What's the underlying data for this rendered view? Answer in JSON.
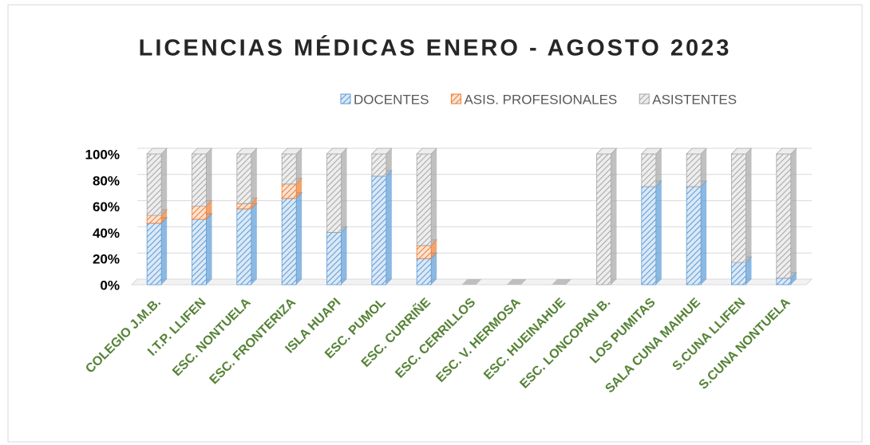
{
  "chart_data": {
    "type": "bar",
    "stacked": true,
    "title": "LICENCIAS MÉDICAS ENERO - AGOSTO 2023",
    "categories": [
      "COLEGIO J.M.B.",
      "I.T.P. LLIFEN",
      "ESC. NONTUELA",
      "ESC. FRONTERIZA",
      "ISLA HUAPI",
      "ESC. PUMOL",
      "ESC. CURRIÑE",
      "ESC. CERRILLOS",
      "ESC. V. HERMOSA",
      "ESC. HUEINAHUE",
      "ESC. LONCOPAN B.",
      "LOS PUMITAS",
      "SALA CUNA MAIHUE",
      "S.CUNA LLIFEN",
      "S.CUNA NONTUELA"
    ],
    "series": [
      {
        "name": "DOCENTES",
        "color": "#5b9bd5",
        "values": [
          47,
          50,
          58,
          66,
          40,
          83,
          20,
          0,
          0,
          0,
          0,
          75,
          75,
          17,
          5
        ]
      },
      {
        "name": "ASIS. PROFESIONALES",
        "color": "#ed7d31",
        "values": [
          6,
          10,
          4,
          11,
          0,
          0,
          10,
          0,
          0,
          0,
          0,
          0,
          0,
          0,
          0
        ]
      },
      {
        "name": "ASISTENTES",
        "color": "#a5a5a5",
        "values": [
          47,
          40,
          38,
          23,
          60,
          17,
          70,
          0,
          0,
          0,
          100,
          25,
          25,
          83,
          95
        ]
      }
    ],
    "ylim": [
      0,
      100
    ],
    "yticks": [
      {
        "value": 0,
        "label": "0%"
      },
      {
        "value": 20,
        "label": "20%"
      },
      {
        "value": 40,
        "label": "40%"
      },
      {
        "value": 60,
        "label": "60%"
      },
      {
        "value": 80,
        "label": "80%"
      },
      {
        "value": 100,
        "label": "100%"
      }
    ],
    "grid": true,
    "legend": "top"
  }
}
